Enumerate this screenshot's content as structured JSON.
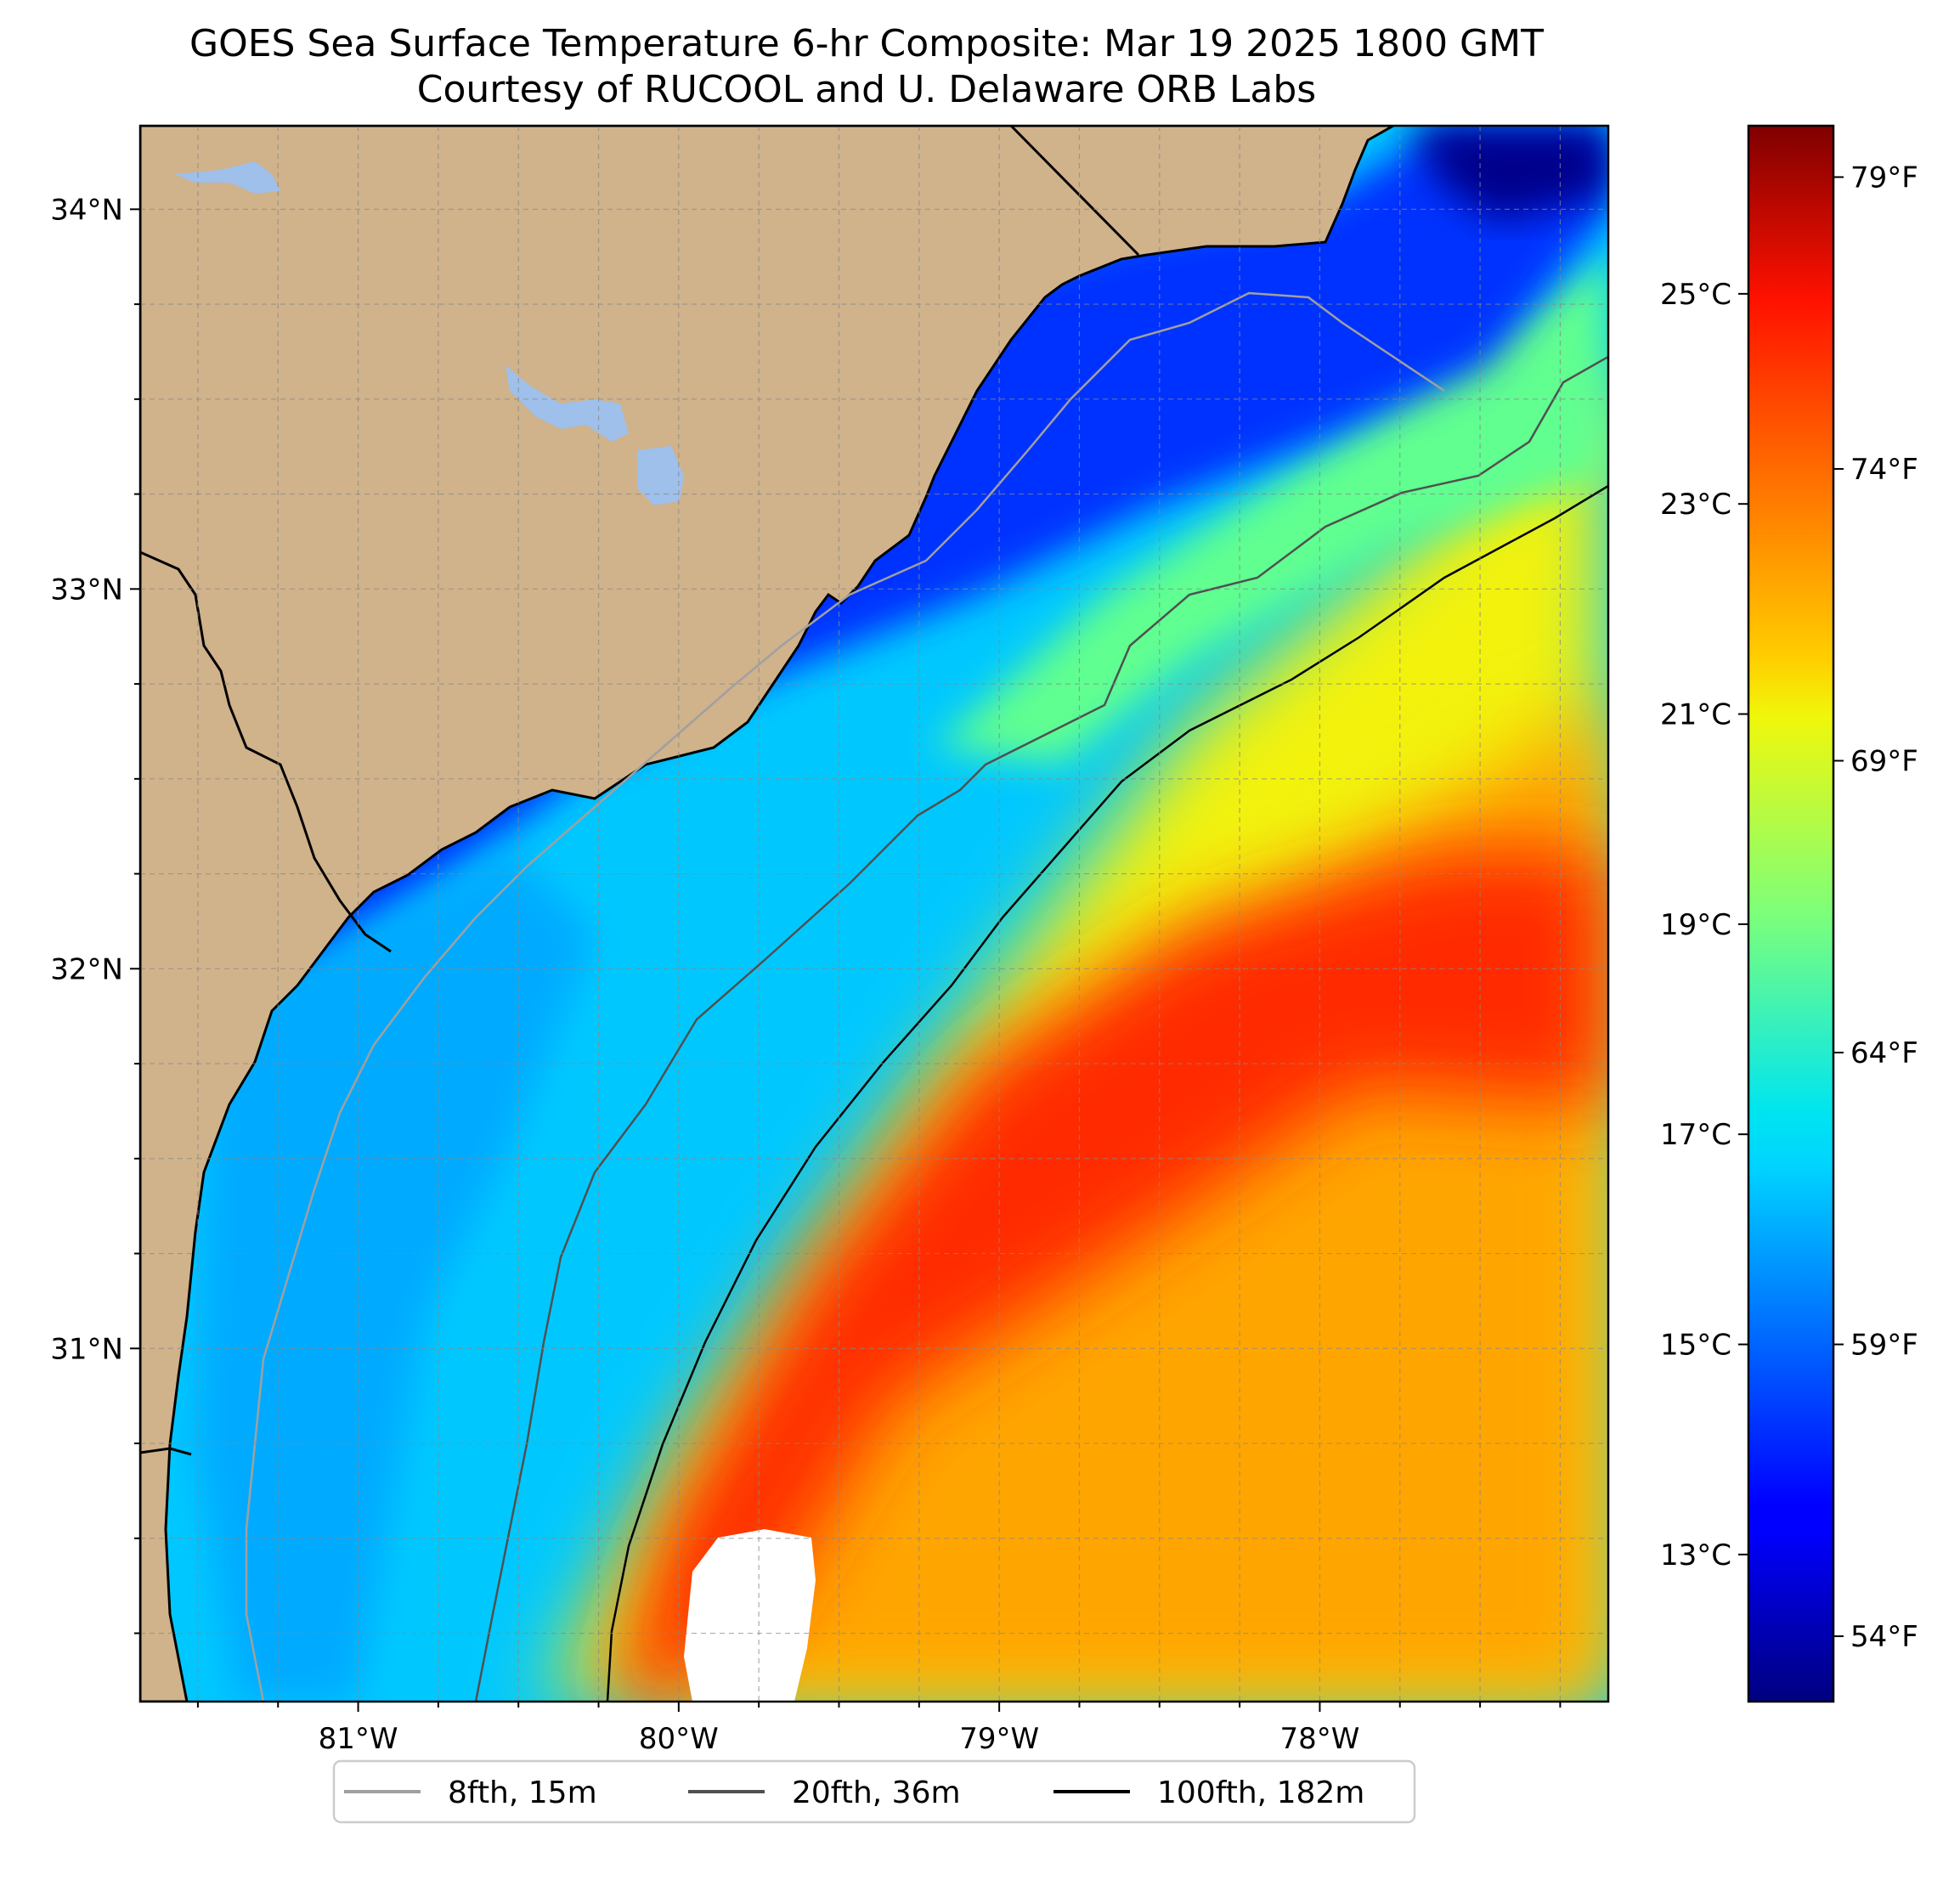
{
  "title": {
    "line1": "GOES Sea Surface Temperature 6-hr Composite: Mar 19 2025 1800 GMT",
    "line2": "Courtesy of RUCOOL and U. Delaware ORB Labs"
  },
  "map": {
    "lon_range": [
      -81.68,
      -77.1
    ],
    "lat_range": [
      30.07,
      34.22
    ],
    "lon_ticks": [
      {
        "value": -81,
        "label": "81°W"
      },
      {
        "value": -80,
        "label": "80°W"
      },
      {
        "value": -79,
        "label": "79°W"
      },
      {
        "value": -78,
        "label": "78°W"
      }
    ],
    "lat_ticks": [
      {
        "value": 31,
        "label": "31°N"
      },
      {
        "value": 32,
        "label": "32°N"
      },
      {
        "value": 33,
        "label": "33°N"
      },
      {
        "value": 34,
        "label": "34°N"
      }
    ],
    "colors": {
      "land": "#d0b28b",
      "lakes": "#9ec0ea",
      "coastline": "#000000",
      "gridlines": "#888888"
    }
  },
  "colorbar": {
    "colormap": "jet",
    "range_celsius": [
      11.6,
      26.6
    ],
    "celsius_ticks": [
      {
        "value": 13,
        "label": "13°C"
      },
      {
        "value": 15,
        "label": "15°C"
      },
      {
        "value": 17,
        "label": "17°C"
      },
      {
        "value": 19,
        "label": "19°C"
      },
      {
        "value": 21,
        "label": "21°C"
      },
      {
        "value": 23,
        "label": "23°C"
      },
      {
        "value": 25,
        "label": "25°C"
      }
    ],
    "fahrenheit_ticks": [
      {
        "value": 54,
        "label": "54°F"
      },
      {
        "value": 59,
        "label": "59°F"
      },
      {
        "value": 64,
        "label": "64°F"
      },
      {
        "value": 69,
        "label": "69°F"
      },
      {
        "value": 74,
        "label": "74°F"
      },
      {
        "value": 79,
        "label": "79°F"
      }
    ]
  },
  "legend": {
    "entries": [
      {
        "label": "8fth, 15m",
        "color": "#a0a0a0"
      },
      {
        "label": "20fth, 36m",
        "color": "#505050"
      },
      {
        "label": "100fth, 182m",
        "color": "#000000"
      }
    ]
  }
}
